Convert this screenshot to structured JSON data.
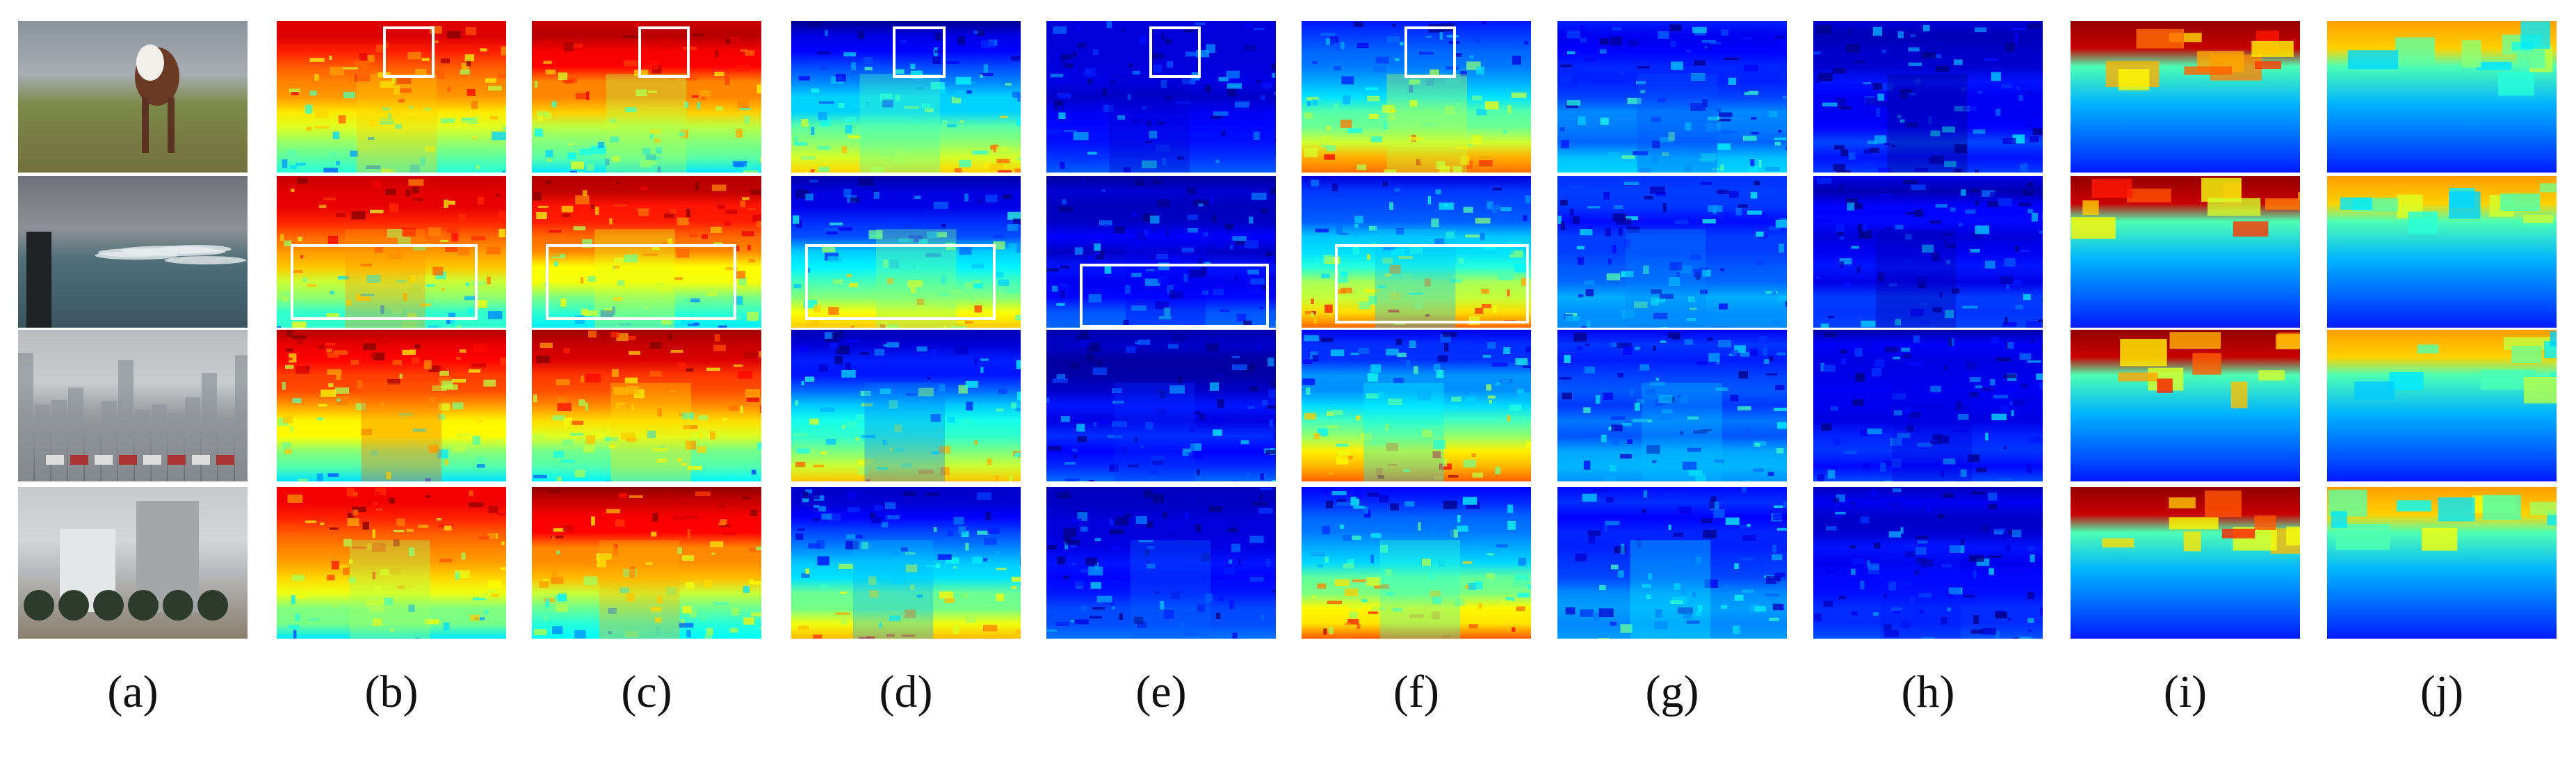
{
  "figure": {
    "panels": [
      {
        "key": "a",
        "type": "photo"
      },
      {
        "key": "b",
        "type": "colormap"
      },
      {
        "key": "c",
        "type": "colormap"
      },
      {
        "key": "d",
        "type": "colormap"
      },
      {
        "key": "e",
        "type": "colormap"
      },
      {
        "key": "f",
        "type": "colormap"
      },
      {
        "key": "g",
        "type": "colormap"
      },
      {
        "key": "h",
        "type": "colormap"
      },
      {
        "key": "i",
        "type": "gradient"
      },
      {
        "key": "j",
        "type": "gradient"
      }
    ],
    "labels": [
      "(a)",
      "(b)",
      "(c)",
      "(d)",
      "(e)",
      "(f)",
      "(g)",
      "(h)",
      "(i)",
      "(j)"
    ],
    "highlight_color": "#ffffff",
    "colormap": "jet"
  }
}
